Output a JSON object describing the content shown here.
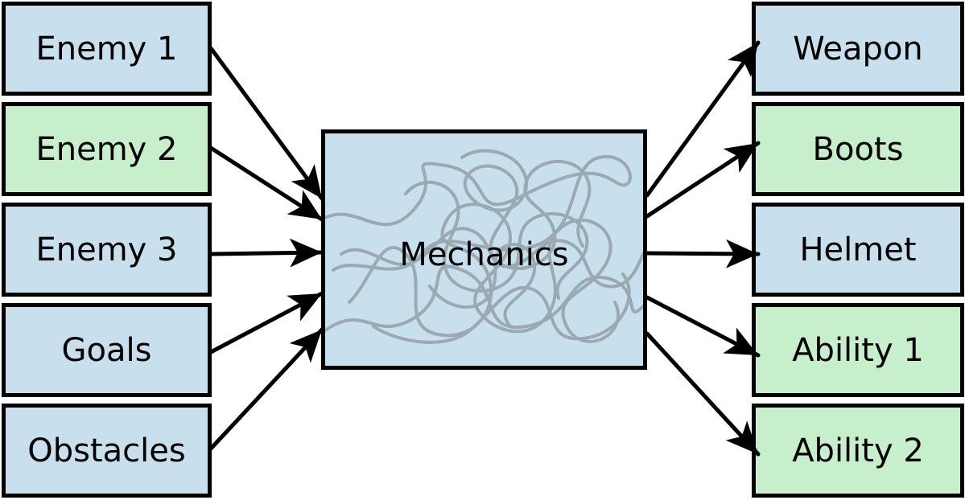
{
  "inputs": [
    {
      "label": "Enemy 1",
      "color": "#c8dfed"
    },
    {
      "label": "Enemy 2",
      "color": "#c8efcb"
    },
    {
      "label": "Enemy 3",
      "color": "#c8dfed"
    },
    {
      "label": "Goals",
      "color": "#c8dfed"
    },
    {
      "label": "Obstacles",
      "color": "#c8dfed"
    }
  ],
  "center": {
    "label": "Mechanics",
    "color": "#c8dfed"
  },
  "outputs": [
    {
      "label": "Weapon",
      "color": "#c8dfed"
    },
    {
      "label": "Boots",
      "color": "#c8efcb"
    },
    {
      "label": "Helmet",
      "color": "#c8dfed"
    },
    {
      "label": "Ability 1",
      "color": "#c8efcb"
    },
    {
      "label": "Ability 2",
      "color": "#c8efcb"
    }
  ]
}
